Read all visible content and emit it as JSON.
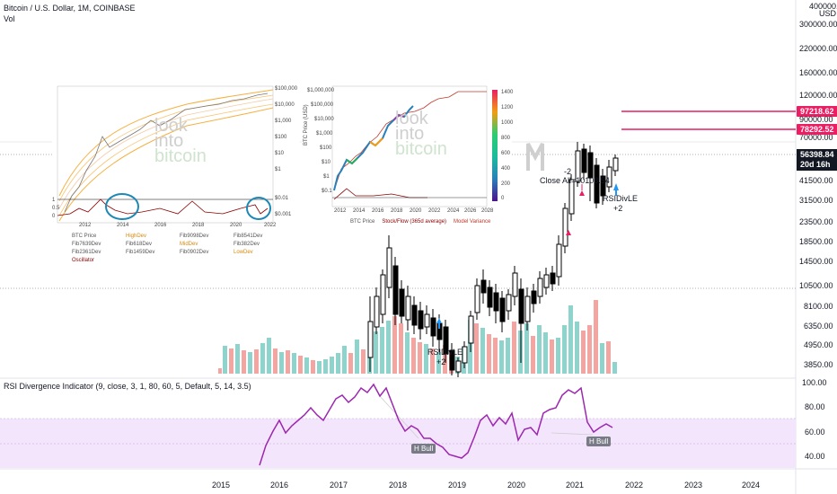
{
  "chart": {
    "title": "Bitcoin / U.S. Dollar, 1M, COINBASE",
    "volume_label": "Vol",
    "currency": "USD",
    "price_axis": [
      "400000.00",
      "300000.00",
      "220000.00",
      "160000.00",
      "120000.00",
      "70000.00",
      "41500.00",
      "31500.00",
      "23500.00",
      "18500.00",
      "14500.00",
      "10500.00",
      "8100.00",
      "6350.00",
      "4950.00",
      "3850.00"
    ],
    "osc_axis": [
      "100.00",
      "80.00",
      "60.00",
      "40.00"
    ],
    "time_axis": [
      "2015",
      "2016",
      "2017",
      "2018",
      "2019",
      "2020",
      "2021",
      "2022",
      "2023",
      "2024"
    ],
    "tags": {
      "level1": "97218.62",
      "level2": "78292.52",
      "last_price": "56398.84",
      "countdown": "20d 16h",
      "right_edge": "90000.00"
    },
    "annotations": {
      "minus2": "-2",
      "close_all": "Close All=10108.54",
      "rsidivle_top": "RSIDivLE",
      "plus2_top": "+2",
      "rsidivle_bottom": "RSIDivLE",
      "plus2_bottom": "+2",
      "h_bull_1": "H Bull",
      "h_bull_2": "H Bull"
    },
    "oscillator_title": "RSI Divergence Indicator (9, close, 3, 1, 80, 60, 5, Default, 5, 14, 3.5)",
    "colors": {
      "up": "#26a69a",
      "down": "#ef5350",
      "vol_up": "#8ed4cc",
      "vol_down": "#f3a5a2",
      "rsi": "#9c27b0",
      "band": "#f3e5fb",
      "magenta": "#e91e63"
    }
  },
  "inset_left": {
    "y_labels": [
      "$100,000",
      "$10,000",
      "$1,000",
      "$100",
      "$10",
      "$1",
      "$0.01",
      "$0.001"
    ],
    "osc_labels": [
      "1",
      "0.5",
      "0"
    ],
    "x_labels": [
      "2012",
      "2014",
      "2016",
      "2018",
      "2020",
      "2022"
    ],
    "watermark": [
      "look",
      "into",
      "bitcoin"
    ],
    "legend": [
      [
        "BTC Price",
        "HighDev",
        "Fib9098Dev",
        "Fib8541Dev"
      ],
      [
        "Fib7639Dev",
        "Fib618Dev",
        "MidDev",
        "Fib382Dev"
      ],
      [
        "Fib2361Dev",
        "Fib1459Dev",
        "Fib0902Dev",
        "LowDev"
      ],
      [
        "Oscillator"
      ]
    ]
  },
  "inset_right": {
    "y_axis_title": "BTC Price (USD)",
    "y_labels": [
      "$1,000,000",
      "$100,000",
      "$10,000",
      "$1,000",
      "$100",
      "$10",
      "$1",
      "$0.1"
    ],
    "x_labels": [
      "2012",
      "2014",
      "2016",
      "2018",
      "2020",
      "2022",
      "2024",
      "2026",
      "2028"
    ],
    "colorbar_labels": [
      "1400",
      "1200",
      "1000",
      "800",
      "600",
      "400",
      "200",
      "0"
    ],
    "watermark": [
      "look",
      "into",
      "bitcoin"
    ],
    "legend": [
      "BTC Price",
      "Stock/Flow (365d average)",
      "Model Variance"
    ]
  }
}
